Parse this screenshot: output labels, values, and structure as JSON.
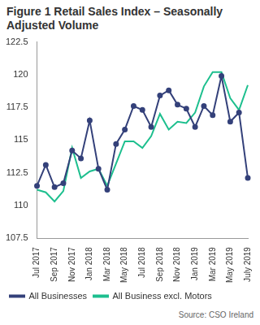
{
  "chart_data": {
    "type": "line",
    "title": "Figure 1 Retail Sales Index – Seasonally Adjusted Volume",
    "source": "Source: CSO Ireland",
    "categories": [
      "Jul 2017",
      null,
      "Sep 2017",
      null,
      "Nov 2017",
      null,
      "Jan 2018",
      null,
      "Mar 2018",
      null,
      "May 2018",
      null,
      "Jul 2018",
      null,
      "Sep 2018",
      null,
      "Nov 2018",
      null,
      "Jan 2019",
      null,
      "Mar 2019",
      null,
      "May 2019",
      null,
      "July 2019"
    ],
    "series": [
      {
        "name": "All Businesses",
        "color": "#34417a",
        "marker": "circle",
        "values": [
          111.5,
          113.1,
          111.4,
          111.7,
          114.2,
          113.6,
          116.5,
          112.8,
          111.2,
          114.7,
          115.8,
          117.6,
          117.3,
          116.0,
          118.4,
          118.8,
          117.7,
          117.4,
          116.0,
          117.6,
          116.9,
          119.9,
          116.4,
          117.1,
          112.1
        ]
      },
      {
        "name": "All Business excl. Motors",
        "color": "#1dbf8e",
        "marker": "none",
        "values": [
          111.2,
          111.0,
          110.3,
          111.1,
          114.4,
          112.1,
          112.6,
          112.8,
          111.5,
          113.2,
          114.9,
          114.9,
          114.4,
          115.3,
          117.0,
          115.8,
          116.4,
          116.3,
          117.1,
          119.1,
          120.2,
          120.2,
          118.2,
          117.3,
          119.2
        ]
      }
    ],
    "ylim": [
      107.5,
      122.5
    ],
    "yticks": [
      107.5,
      110,
      112.5,
      115,
      117.5,
      120,
      122.5
    ],
    "grid": false,
    "legend": "bottom-left"
  }
}
